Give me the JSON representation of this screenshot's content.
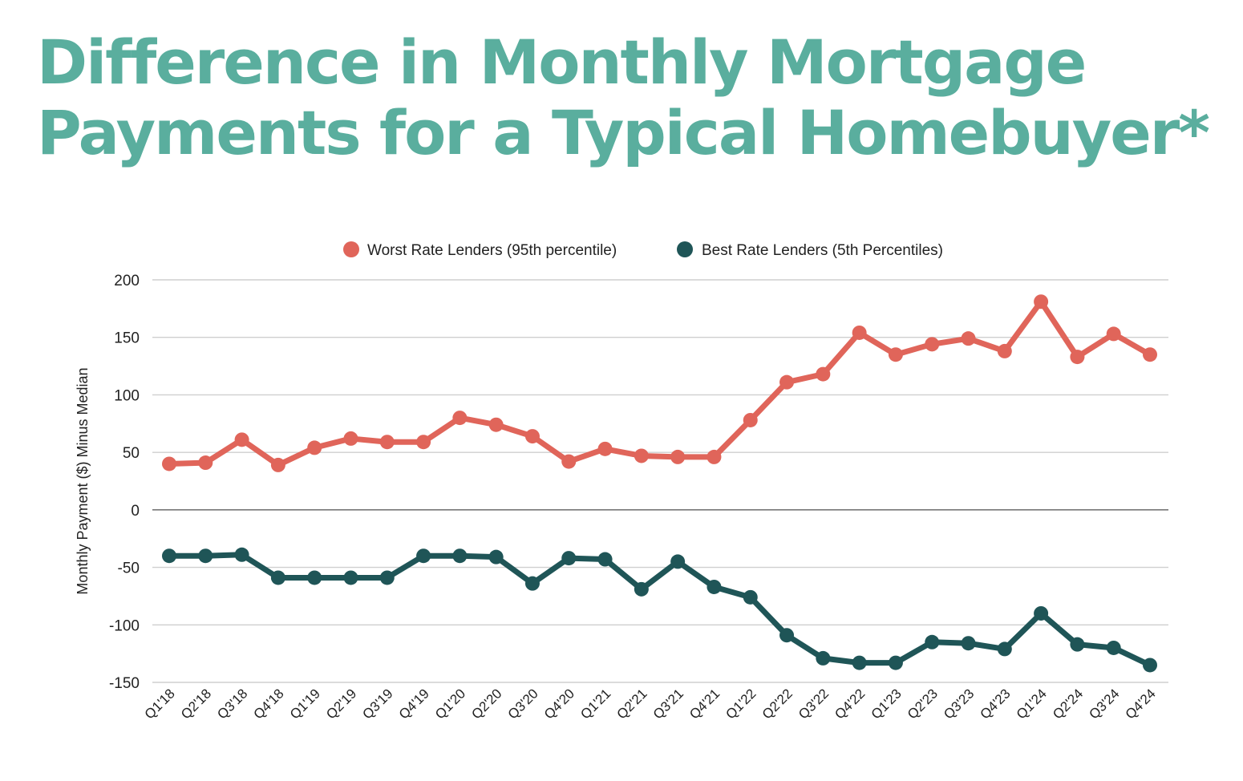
{
  "chart_data": {
    "type": "line",
    "title_line1": "Difference in Monthly Mortgage",
    "title_line2": "Payments for a Typical Homebuyer*",
    "ylabel": "Monthly Payment ($) Minus Median",
    "ylim": [
      -150,
      200
    ],
    "yticks": [
      200,
      150,
      100,
      50,
      0,
      -50,
      -100,
      -150
    ],
    "ytick_labels": [
      "200",
      "150",
      "100",
      "50",
      "0",
      "-50",
      "-100",
      "-150"
    ],
    "grid": true,
    "legend_position": "top-center",
    "x": [
      "Q1'18",
      "Q2'18",
      "Q3'18",
      "Q4'18",
      "Q1'19",
      "Q2'19",
      "Q3'19",
      "Q4'19",
      "Q1'20",
      "Q2'20",
      "Q3'20",
      "Q4'20",
      "Q1'21",
      "Q2'21",
      "Q3'21",
      "Q4'21",
      "Q1'22",
      "Q2'22",
      "Q3'22",
      "Q4'22",
      "Q1'23",
      "Q2'23",
      "Q3'23",
      "Q4'23",
      "Q1'24",
      "Q2'24",
      "Q3'24",
      "Q4'24"
    ],
    "series": [
      {
        "name": "Worst Rate Lenders (95th percentile)",
        "color": "#e0655a",
        "values": [
          40,
          41,
          61,
          39,
          54,
          62,
          59,
          59,
          80,
          74,
          64,
          42,
          53,
          47,
          46,
          46,
          78,
          111,
          118,
          154,
          135,
          144,
          149,
          138,
          181,
          133,
          153,
          135
        ]
      },
      {
        "name": "Best Rate Lenders (5th Percentiles)",
        "color": "#1f5557",
        "values": [
          -40,
          -40,
          -39,
          -59,
          -59,
          -59,
          -59,
          -40,
          -40,
          -41,
          -64,
          -42,
          -43,
          -69,
          -45,
          -67,
          -76,
          -109,
          -129,
          -133,
          -133,
          -115,
          -116,
          -121,
          -90,
          -117,
          -120,
          -135
        ]
      }
    ]
  }
}
